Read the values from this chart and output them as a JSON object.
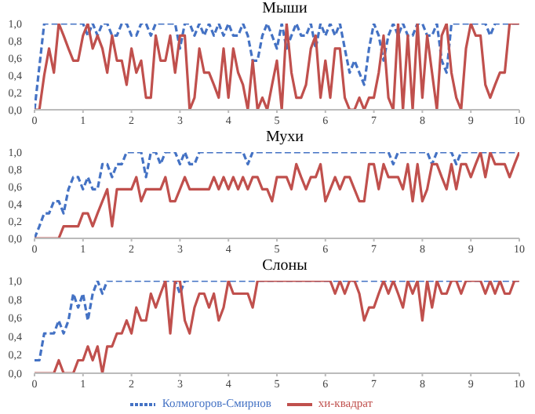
{
  "chart_data": [
    {
      "type": "line",
      "title": "Мыши",
      "x": [
        0,
        0.1,
        0.2,
        0.3,
        0.4,
        0.5,
        0.6,
        0.7,
        0.8,
        0.9,
        1,
        1.1,
        1.2,
        1.3,
        1.4,
        1.5,
        1.6,
        1.7,
        1.8,
        1.9,
        2,
        2.1,
        2.2,
        2.3,
        2.4,
        2.5,
        2.6,
        2.7,
        2.8,
        2.9,
        3,
        3.1,
        3.2,
        3.3,
        3.4,
        3.5,
        3.6,
        3.7,
        3.8,
        3.9,
        4,
        4.1,
        4.2,
        4.3,
        4.4,
        4.5,
        4.6,
        4.7,
        4.8,
        4.9,
        5,
        5.1,
        5.2,
        5.3,
        5.4,
        5.5,
        5.6,
        5.7,
        5.8,
        5.9,
        6,
        6.1,
        6.2,
        6.3,
        6.4,
        6.5,
        6.6,
        6.7,
        6.8,
        6.9,
        7,
        7.1,
        7.2,
        7.3,
        7.4,
        7.5,
        7.6,
        7.7,
        7.8,
        7.9,
        8,
        8.1,
        8.2,
        8.3,
        8.4,
        8.5,
        8.6,
        8.7,
        8.8,
        8.9,
        9,
        9.1,
        9.2,
        9.3,
        9.4,
        9.5,
        9.6,
        9.7,
        9.8,
        9.9,
        10
      ],
      "xlim": [
        0,
        10
      ],
      "xticks": [
        0,
        1,
        2,
        3,
        4,
        5,
        6,
        7,
        8,
        9,
        10
      ],
      "ylim": [
        0,
        1
      ],
      "yticks": [
        {
          "value": 0,
          "label": "0,0"
        },
        {
          "value": 0.2,
          "label": "0,2"
        },
        {
          "value": 0.4,
          "label": "0,4"
        },
        {
          "value": 0.6,
          "label": "0,6"
        },
        {
          "value": 0.8,
          "label": "0,8"
        },
        {
          "value": 1,
          "label": "1,0"
        }
      ],
      "legend": false,
      "marker": "none",
      "series": [
        {
          "color": "#4472c4",
          "line_style": "dashed",
          "values": [
            0,
            0.5,
            1,
            1,
            1,
            1,
            1,
            1,
            1,
            1,
            1,
            0.86,
            1,
            0.86,
            1,
            1,
            0.86,
            0.86,
            1,
            1,
            0.86,
            0.86,
            1,
            1,
            0.86,
            1,
            1,
            1,
            1,
            1,
            0.71,
            1,
            1,
            0.86,
            1,
            0.86,
            1,
            0.86,
            1,
            0.86,
            1,
            0.86,
            0.86,
            1,
            0.86,
            0.57,
            0.57,
            0.86,
            1,
            0.86,
            0.71,
            1,
            0.71,
            0.86,
            1,
            0.86,
            0.86,
            1,
            0.71,
            1,
            0.86,
            1,
            0.86,
            1,
            0.71,
            0.43,
            0.57,
            0.43,
            0.29,
            0.71,
            1,
            0.86,
            0.57,
            0.86,
            1,
            0.86,
            1,
            0.86,
            0.86,
            1,
            1,
            0.86,
            0.86,
            1,
            0.57,
            0.43,
            1,
            1,
            1,
            1,
            1,
            1,
            1,
            1,
            0.86,
            1,
            1,
            1,
            1,
            1,
            1
          ]
        },
        {
          "color": "#c0504d",
          "line_style": "solid",
          "values": [
            0,
            0,
            0.4,
            0.71,
            0.43,
            1,
            0.86,
            0.71,
            0.57,
            0.57,
            0.86,
            1,
            0.71,
            0.86,
            0.71,
            0.43,
            0.86,
            0.57,
            0.57,
            0.29,
            0.71,
            0.43,
            0.57,
            0.14,
            0.14,
            0.86,
            0.57,
            0.57,
            0.86,
            0.43,
            0.86,
            0.86,
            0,
            0.14,
            0.71,
            0.43,
            0.43,
            0.29,
            0.14,
            0.71,
            0.14,
            0.71,
            0.43,
            0.29,
            0,
            0.57,
            0,
            0.14,
            0,
            0.29,
            0.57,
            0,
            1,
            0.43,
            0.14,
            0.14,
            0.29,
            0.71,
            0.86,
            0.14,
            0.57,
            0.14,
            0.71,
            0.71,
            0.14,
            0,
            0,
            0.14,
            0,
            0.14,
            0.14,
            0.43,
            0.86,
            0.14,
            0,
            1,
            0,
            0.86,
            0,
            1,
            0.14,
            0.86,
            0.43,
            0,
            0.86,
            1,
            0.43,
            0.14,
            0,
            0.71,
            1,
            0.86,
            0.86,
            0.29,
            0.14,
            0.29,
            0.43,
            0.43,
            1,
            1,
            1
          ]
        }
      ]
    },
    {
      "type": "line",
      "title": "Мухи",
      "x": [
        0,
        0.1,
        0.2,
        0.3,
        0.4,
        0.5,
        0.6,
        0.7,
        0.8,
        0.9,
        1,
        1.1,
        1.2,
        1.3,
        1.4,
        1.5,
        1.6,
        1.7,
        1.8,
        1.9,
        2,
        2.1,
        2.2,
        2.3,
        2.4,
        2.5,
        2.6,
        2.7,
        2.8,
        2.9,
        3,
        3.1,
        3.2,
        3.3,
        3.4,
        3.5,
        3.6,
        3.7,
        3.8,
        3.9,
        4,
        4.1,
        4.2,
        4.3,
        4.4,
        4.5,
        4.6,
        4.7,
        4.8,
        4.9,
        5,
        5.1,
        5.2,
        5.3,
        5.4,
        5.5,
        5.6,
        5.7,
        5.8,
        5.9,
        6,
        6.1,
        6.2,
        6.3,
        6.4,
        6.5,
        6.6,
        6.7,
        6.8,
        6.9,
        7,
        7.1,
        7.2,
        7.3,
        7.4,
        7.5,
        7.6,
        7.7,
        7.8,
        7.9,
        8,
        8.1,
        8.2,
        8.3,
        8.4,
        8.5,
        8.6,
        8.7,
        8.8,
        8.9,
        9,
        9.1,
        9.2,
        9.3,
        9.4,
        9.5,
        9.6,
        9.7,
        9.8,
        9.9,
        10
      ],
      "xlim": [
        0,
        10
      ],
      "xticks": [
        0,
        1,
        2,
        3,
        4,
        5,
        6,
        7,
        8,
        9,
        10
      ],
      "ylim": [
        0,
        1
      ],
      "yticks": [
        {
          "value": 0,
          "label": "0,0"
        },
        {
          "value": 0.2,
          "label": "0,2"
        },
        {
          "value": 0.4,
          "label": "0,4"
        },
        {
          "value": 0.6,
          "label": "0,6"
        },
        {
          "value": 0.8,
          "label": "0,8"
        },
        {
          "value": 1,
          "label": "1,0"
        }
      ],
      "legend": false,
      "marker": "none",
      "series": [
        {
          "color": "#4472c4",
          "line_style": "dashed",
          "values": [
            0,
            0.14,
            0.29,
            0.29,
            0.43,
            0.43,
            0.29,
            0.57,
            0.71,
            0.71,
            0.57,
            0.71,
            0.57,
            0.57,
            0.86,
            0.86,
            0.71,
            0.86,
            0.86,
            1,
            1,
            1,
            1,
            0.71,
            1,
            1,
            0.86,
            1,
            1,
            1,
            0.86,
            1,
            0.86,
            0.86,
            1,
            1,
            1,
            1,
            1,
            1,
            1,
            1,
            1,
            1,
            0.86,
            1,
            1,
            1,
            1,
            1,
            1,
            1,
            1,
            1,
            1,
            1,
            1,
            1,
            1,
            1,
            1,
            1,
            1,
            1,
            1,
            1,
            1,
            1,
            1,
            1,
            1,
            1,
            1,
            1,
            0.86,
            1,
            1,
            1,
            1,
            1,
            1,
            1,
            0.86,
            1,
            1,
            1,
            1,
            0.86,
            1,
            1,
            1,
            1,
            1,
            1,
            1,
            1,
            1,
            1,
            1,
            1,
            1
          ]
        },
        {
          "color": "#c0504d",
          "line_style": "solid",
          "values": [
            0,
            0,
            0,
            0,
            0,
            0,
            0.14,
            0.14,
            0.14,
            0.14,
            0.29,
            0.29,
            0.14,
            0.29,
            0.43,
            0.57,
            0.14,
            0.57,
            0.57,
            0.57,
            0.57,
            0.71,
            0.43,
            0.57,
            0.57,
            0.57,
            0.57,
            0.71,
            0.43,
            0.43,
            0.57,
            0.71,
            0.57,
            0.57,
            0.57,
            0.57,
            0.57,
            0.71,
            0.57,
            0.71,
            0.57,
            0.71,
            0.57,
            0.71,
            0.57,
            0.71,
            0.71,
            0.57,
            0.57,
            0.43,
            0.71,
            0.71,
            0.71,
            0.57,
            0.86,
            0.71,
            0.57,
            0.71,
            0.71,
            0.86,
            0.43,
            0.57,
            0.71,
            0.57,
            0.71,
            0.71,
            0.57,
            0.43,
            0.43,
            0.86,
            0.86,
            0.57,
            0.86,
            0.71,
            0.71,
            0.71,
            0.57,
            0.86,
            0.43,
            0.86,
            0.43,
            0.57,
            0.86,
            0.86,
            0.71,
            0.57,
            0.86,
            0.57,
            0.86,
            0.86,
            0.71,
            0.86,
            1,
            0.71,
            1,
            0.86,
            0.86,
            0.86,
            0.71,
            0.86,
            1
          ]
        }
      ]
    },
    {
      "type": "line",
      "title": "Слоны",
      "x": [
        0,
        0.1,
        0.2,
        0.3,
        0.4,
        0.5,
        0.6,
        0.7,
        0.8,
        0.9,
        1,
        1.1,
        1.2,
        1.3,
        1.4,
        1.5,
        1.6,
        1.7,
        1.8,
        1.9,
        2,
        2.1,
        2.2,
        2.3,
        2.4,
        2.5,
        2.6,
        2.7,
        2.8,
        2.9,
        3,
        3.1,
        3.2,
        3.3,
        3.4,
        3.5,
        3.6,
        3.7,
        3.8,
        3.9,
        4,
        4.1,
        4.2,
        4.3,
        4.4,
        4.5,
        4.6,
        4.7,
        4.8,
        4.9,
        5,
        5.1,
        5.2,
        5.3,
        5.4,
        5.5,
        5.6,
        5.7,
        5.8,
        5.9,
        6,
        6.1,
        6.2,
        6.3,
        6.4,
        6.5,
        6.6,
        6.7,
        6.8,
        6.9,
        7,
        7.1,
        7.2,
        7.3,
        7.4,
        7.5,
        7.6,
        7.7,
        7.8,
        7.9,
        8,
        8.1,
        8.2,
        8.3,
        8.4,
        8.5,
        8.6,
        8.7,
        8.8,
        8.9,
        9,
        9.1,
        9.2,
        9.3,
        9.4,
        9.5,
        9.6,
        9.7,
        9.8,
        9.9,
        10
      ],
      "xlim": [
        0,
        10
      ],
      "xticks": [
        0,
        1,
        2,
        3,
        4,
        5,
        6,
        7,
        8,
        9,
        10
      ],
      "ylim": [
        0,
        1
      ],
      "yticks": [
        {
          "value": 0,
          "label": "0,0"
        },
        {
          "value": 0.2,
          "label": "0,2"
        },
        {
          "value": 0.4,
          "label": "0,4"
        },
        {
          "value": 0.6,
          "label": "0,6"
        },
        {
          "value": 0.8,
          "label": "0,8"
        },
        {
          "value": 1,
          "label": "1,0"
        }
      ],
      "legend": "bottom",
      "marker": "none",
      "series": [
        {
          "name": "Колмогоров-Смирнов",
          "color": "#4472c4",
          "line_style": "dashed",
          "values": [
            0.14,
            0.14,
            0.43,
            0.43,
            0.43,
            0.57,
            0.43,
            0.57,
            0.86,
            0.71,
            0.86,
            0.57,
            0.86,
            1,
            0.86,
            1,
            1,
            1,
            1,
            1,
            1,
            1,
            1,
            1,
            1,
            1,
            1,
            1,
            1,
            1,
            0.86,
            1,
            1,
            1,
            1,
            1,
            1,
            1,
            1,
            1,
            1,
            1,
            1,
            1,
            1,
            1,
            1,
            1,
            1,
            1,
            1,
            1,
            1,
            1,
            1,
            1,
            1,
            1,
            1,
            1,
            1,
            1,
            1,
            1,
            1,
            1,
            1,
            1,
            1,
            1,
            1,
            1,
            1,
            1,
            1,
            1,
            1,
            1,
            1,
            1,
            1,
            1,
            1,
            1,
            1,
            1,
            1,
            1,
            1,
            1,
            1,
            1,
            1,
            1,
            1,
            1,
            1,
            1,
            1,
            1,
            1
          ]
        },
        {
          "name": "хи-квадрат",
          "color": "#c0504d",
          "line_style": "solid",
          "values": [
            0,
            0,
            0,
            0,
            0,
            0.14,
            0,
            0,
            0,
            0.14,
            0.14,
            0.29,
            0.14,
            0.29,
            0,
            0.29,
            0.29,
            0.43,
            0.43,
            0.57,
            0.43,
            0.71,
            0.57,
            0.57,
            0.86,
            0.71,
            0.86,
            1,
            0.43,
            1,
            1,
            0.57,
            0.43,
            0.71,
            0.86,
            0.86,
            0.71,
            0.86,
            0.57,
            0.71,
            1,
            0.86,
            0.86,
            0.86,
            0.86,
            0.71,
            1,
            1,
            1,
            1,
            1,
            1,
            1,
            1,
            1,
            1,
            1,
            1,
            1,
            1,
            1,
            1,
            0.86,
            1,
            0.86,
            1,
            1,
            0.86,
            0.57,
            0.71,
            0.71,
            0.86,
            1,
            0.86,
            1,
            0.86,
            0.71,
            1,
            0.86,
            1,
            0.57,
            1,
            0.71,
            1,
            0.86,
            0.86,
            1,
            1,
            0.86,
            1,
            1,
            1,
            1,
            0.86,
            1,
            0.86,
            1,
            0.86,
            0.86,
            1,
            1
          ]
        }
      ]
    }
  ]
}
